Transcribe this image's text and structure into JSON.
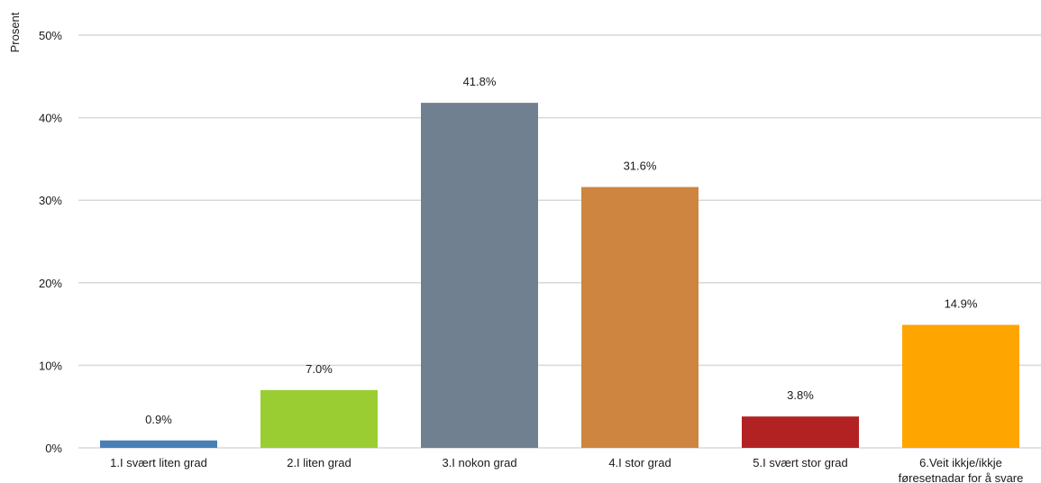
{
  "chart_data": {
    "type": "bar",
    "ylabel": "Prosent",
    "xlabel": "",
    "ylim": [
      0,
      50
    ],
    "yticks": [
      0,
      10,
      20,
      30,
      40,
      50
    ],
    "ytick_labels": [
      "0%",
      "10%",
      "20%",
      "30%",
      "40%",
      "50%"
    ],
    "grid": true,
    "categories": [
      [
        "1.I svært liten grad"
      ],
      [
        "2.I liten grad"
      ],
      [
        "3.I nokon grad"
      ],
      [
        "4.I stor grad"
      ],
      [
        "5.I svært stor grad"
      ],
      [
        "6.Veit ikkje/ikkje",
        "føresetnadar for å svare"
      ]
    ],
    "values": [
      0.9,
      7.0,
      41.8,
      31.6,
      3.8,
      14.9
    ],
    "value_labels": [
      "0.9%",
      "7.0%",
      "41.8%",
      "31.6%",
      "3.8%",
      "14.9%"
    ],
    "colors": [
      "#4a7fb5",
      "#9acd32",
      "#708090",
      "#cd853f",
      "#b22222",
      "#ffa500"
    ]
  }
}
